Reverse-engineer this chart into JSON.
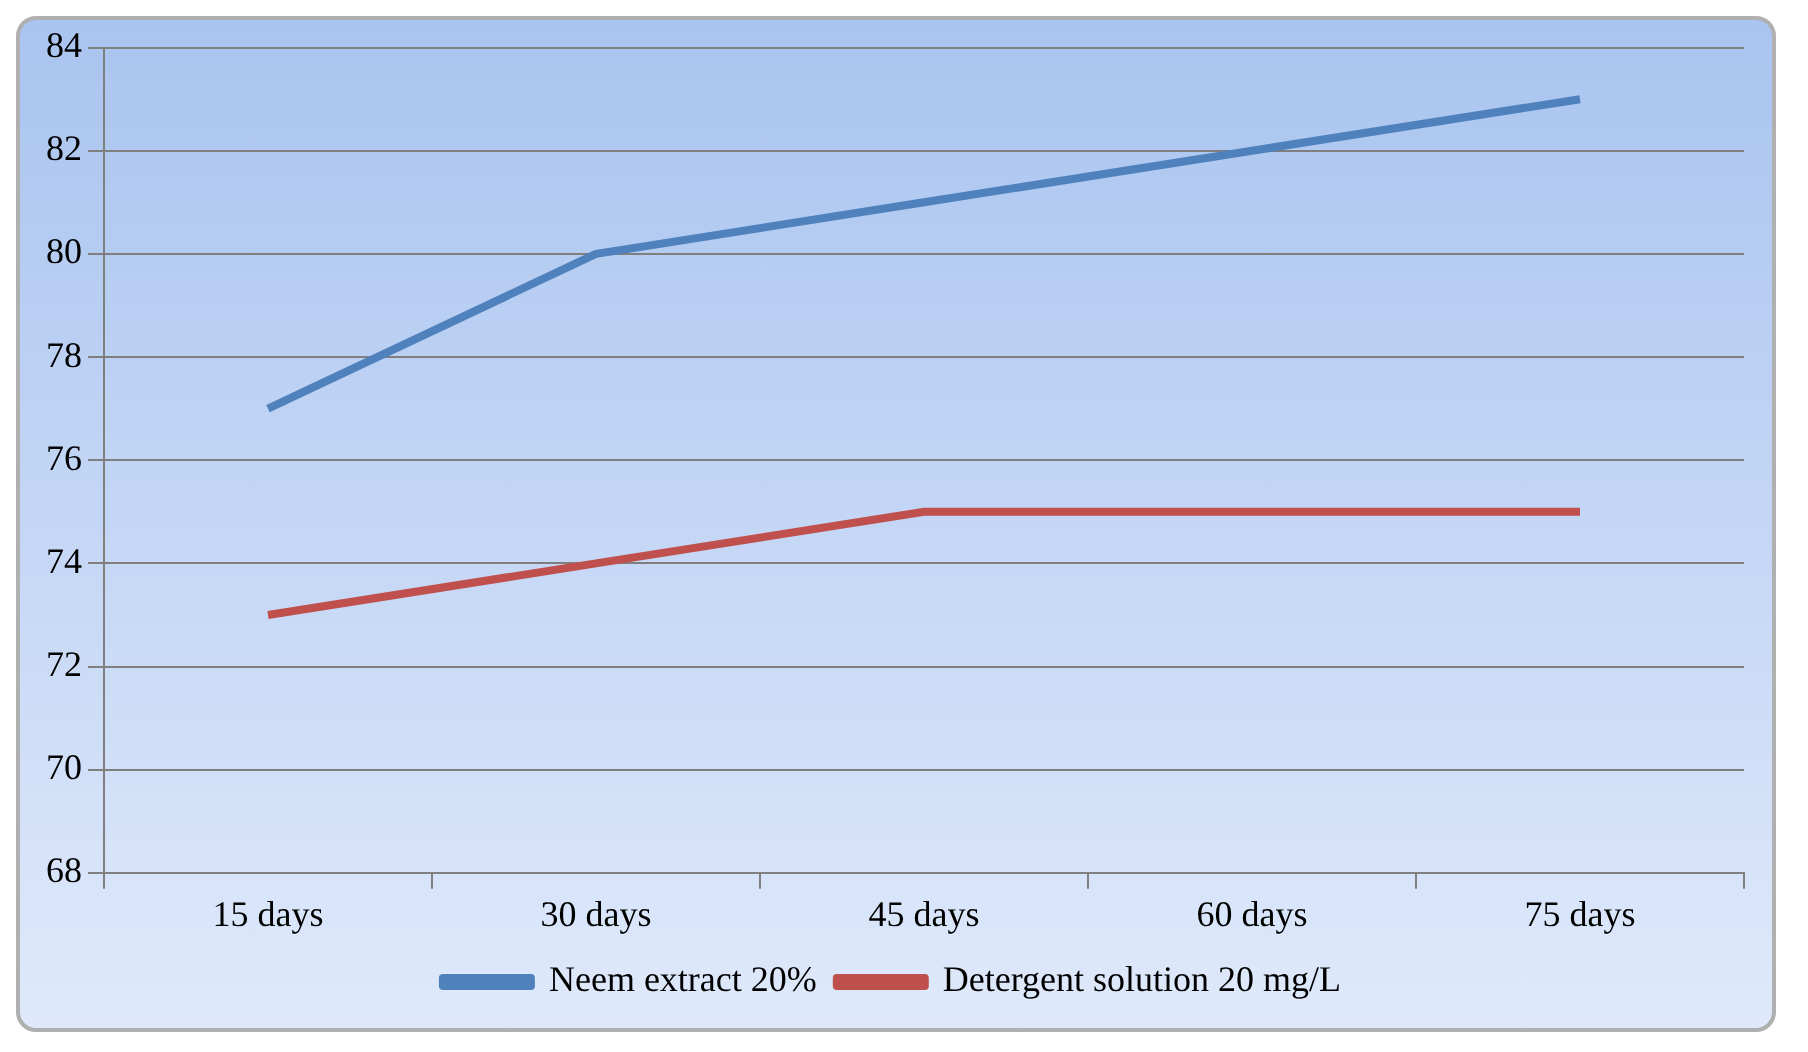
{
  "chart_data": {
    "type": "line",
    "categories": [
      "15 days",
      "30 days",
      "45 days",
      "60 days",
      "75 days"
    ],
    "series": [
      {
        "name": "Neem extract 20%",
        "color": "#4f81bd",
        "values": [
          77,
          80,
          81,
          82,
          83
        ]
      },
      {
        "name": "Detergent solution 20 mg/L",
        "color": "#c0504d",
        "values": [
          73,
          74,
          75,
          75,
          75
        ]
      }
    ],
    "ylim": [
      68,
      84
    ],
    "yticks": [
      68,
      70,
      72,
      74,
      76,
      78,
      80,
      82,
      84
    ],
    "grid": "y",
    "legend": "bottom",
    "marker": "none",
    "line_style": "solid"
  }
}
